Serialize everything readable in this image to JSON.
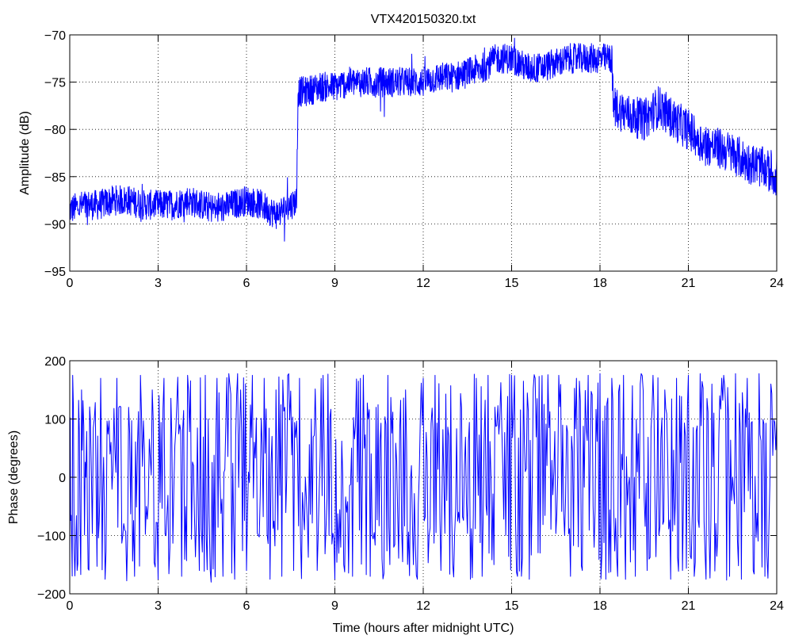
{
  "chart_data": [
    {
      "type": "line",
      "title": "VTX420150320.txt",
      "xlabel": "",
      "ylabel": "Amplitude (dB)",
      "xlim": [
        0,
        24
      ],
      "ylim": [
        -95,
        -70
      ],
      "xticks": [
        0,
        3,
        6,
        9,
        12,
        15,
        18,
        21,
        24
      ],
      "yticks": [
        -95,
        -90,
        -85,
        -80,
        -75,
        -70
      ],
      "grid": true,
      "color": "#0000ff",
      "series": [
        {
          "x": [
            0,
            0.5,
            1,
            1.5,
            2,
            2.5,
            3,
            3.5,
            4,
            4.5,
            5,
            5.5,
            6,
            6.5,
            7,
            7.5,
            7.7,
            7.75,
            8,
            8.5,
            9,
            9.5,
            10,
            10.5,
            11,
            11.5,
            12,
            12.5,
            13,
            13.5,
            14,
            14.5,
            15,
            15.5,
            16,
            16.5,
            17,
            17.5,
            18,
            18.4,
            18.45,
            18.7,
            19,
            19.5,
            20,
            20.5,
            21,
            21.5,
            22,
            22.5,
            23,
            23.5,
            24
          ],
          "y": [
            -88.5,
            -88,
            -88,
            -87.5,
            -87.5,
            -88,
            -88,
            -88,
            -87.5,
            -88,
            -88.5,
            -88,
            -87.5,
            -88,
            -89,
            -88,
            -87.5,
            -76,
            -76,
            -75.5,
            -75.5,
            -75,
            -75,
            -75,
            -75,
            -75,
            -75,
            -74.5,
            -74.5,
            -74,
            -73.5,
            -72.5,
            -72.5,
            -73.5,
            -73.5,
            -73,
            -72.5,
            -72.5,
            -72.5,
            -72.5,
            -77.5,
            -78,
            -78.5,
            -79,
            -77.5,
            -79,
            -80,
            -81.5,
            -82,
            -82.5,
            -83.5,
            -84,
            -85
          ]
        }
      ]
    },
    {
      "type": "line",
      "title": "",
      "xlabel": "Time (hours after midnight UTC)",
      "ylabel": "Phase (degrees)",
      "xlim": [
        0,
        24
      ],
      "ylim": [
        -200,
        200
      ],
      "xticks": [
        0,
        3,
        6,
        9,
        12,
        15,
        18,
        21,
        24
      ],
      "yticks": [
        -200,
        -100,
        0,
        100,
        200
      ],
      "grid": true,
      "color": "#0000ff",
      "series": [
        {
          "x": [
            0,
            0.1,
            0.25,
            0.4,
            0.55,
            0.7,
            0.9,
            1.05,
            1.2,
            1.4,
            1.6,
            1.8,
            2.0,
            2.2,
            2.4,
            2.6,
            2.8,
            3.0,
            3.2,
            3.4,
            3.6,
            3.8,
            4.0,
            4.2,
            4.4,
            4.6,
            4.8,
            5.0,
            5.2,
            5.4,
            5.6,
            5.8,
            6.0,
            6.2,
            6.4,
            6.6,
            6.8,
            7.0,
            7.2,
            7.4,
            7.6,
            7.8,
            8.0,
            8.2,
            8.4,
            8.6,
            8.8,
            9.0,
            9.2,
            9.4,
            9.6,
            9.8,
            10.0,
            10.2,
            10.4,
            10.6,
            10.8,
            11.0,
            11.2,
            11.4,
            11.6,
            11.8,
            12.0,
            12.2,
            12.4,
            12.6,
            12.8,
            13.0,
            13.2,
            13.4,
            13.6,
            13.8,
            14.0,
            14.2,
            14.4,
            14.6,
            14.8,
            15.0,
            15.2,
            15.4,
            15.6,
            15.8,
            16.0,
            16.2,
            16.4,
            16.6,
            16.8,
            17.0,
            17.2,
            17.4,
            17.6,
            17.8,
            18.0,
            18.2,
            18.4,
            18.6,
            18.8,
            19.0,
            19.2,
            19.4,
            19.6,
            19.8,
            20.0,
            20.2,
            20.4,
            20.6,
            20.8,
            21.0,
            21.2,
            21.4,
            21.6,
            21.8,
            22.0,
            22.2,
            22.4,
            22.6,
            22.8,
            23.0,
            23.2,
            23.4,
            23.6,
            23.8,
            24.0
          ],
          "y": [
            -170,
            175,
            -160,
            150,
            0,
            100,
            -30,
            170,
            -175,
            60,
            170,
            -100,
            120,
            -170,
            175,
            -50,
            150,
            -175,
            170,
            -120,
            80,
            -170,
            175,
            20,
            -160,
            175,
            -180,
            170,
            -170,
            178,
            -175,
            150,
            -160,
            175,
            -100,
            170,
            -175,
            150,
            -170,
            175,
            -160,
            170,
            0,
            100,
            -160,
            175,
            -100,
            -175,
            -120,
            -60,
            -170,
            165,
            50,
            -170,
            120,
            -140,
            175,
            -120,
            80,
            150,
            20,
            -175,
            170,
            -100,
            175,
            -160,
            -40,
            -150,
            -60,
            20,
            -175,
            170,
            -170,
            175,
            -150,
            100,
            -100,
            175,
            -170,
            165,
            -175,
            170,
            60,
            20,
            -30,
            175,
            -100,
            -170,
            170,
            -160,
            175,
            -120,
            178,
            -175,
            170,
            -170,
            175,
            0,
            -170,
            178,
            -160,
            175,
            -100,
            150,
            -175,
            170,
            -160,
            175,
            -170,
            178,
            -175,
            160,
            -100,
            175,
            -170,
            178,
            -175,
            170,
            -160,
            178,
            -170,
            160,
            100
          ]
        }
      ]
    }
  ]
}
